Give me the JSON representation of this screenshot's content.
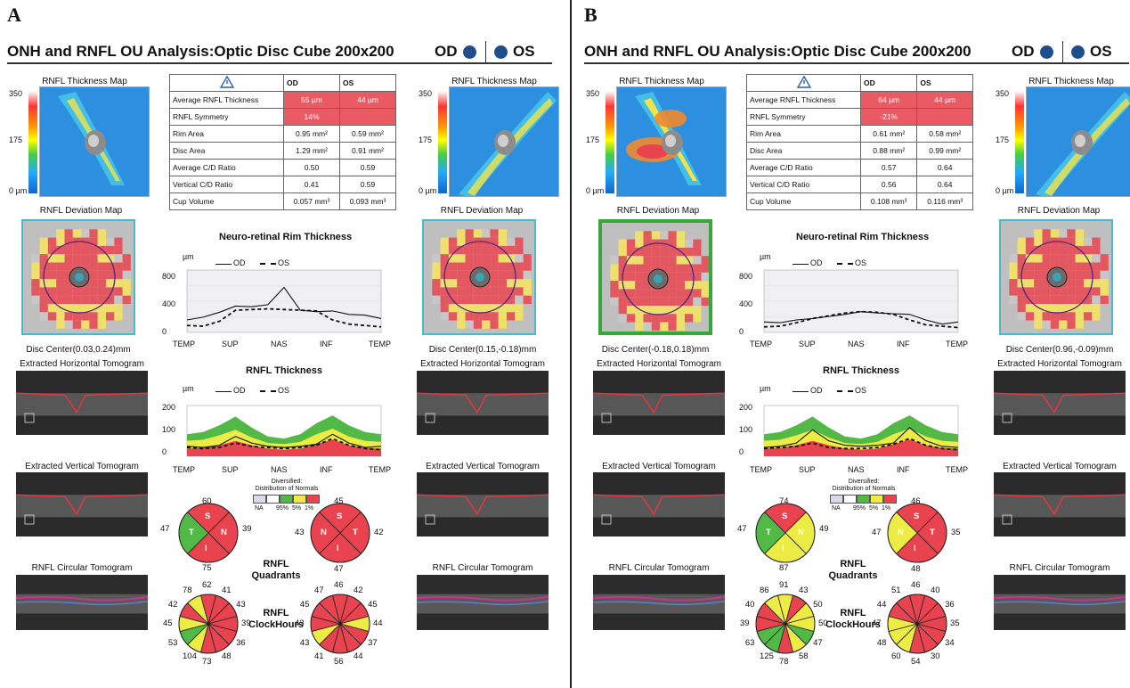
{
  "panels": [
    {
      "letter": "A",
      "title": "ONH and RNFL OU Analysis:Optic Disc Cube 200x200",
      "od_label": "OD",
      "os_label": "OS",
      "thickness_map_label": "RNFL Thickness Map",
      "scale_max": "350",
      "scale_mid": "175",
      "scale_min": "0 µm",
      "deviation_map_label": "RNFL Deviation Map",
      "disc_center_od": "Disc Center(0.03,0.24)mm",
      "disc_center_os": "Disc Center(0.15,-0.18)mm",
      "horiz_tomo_label": "Extracted Horizontal Tomogram",
      "vert_tomo_label": "Extracted Vertical Tomogram",
      "circ_tomo_label": "RNFL Circular Tomogram",
      "table": {
        "warn_icon": "warning-triangle-icon",
        "col_od": "OD",
        "col_os": "OS",
        "rows": [
          {
            "label": "Average RNFL Thickness",
            "od": "55 µm",
            "os": "44 µm",
            "od_red": true,
            "os_red": true
          },
          {
            "label": "RNFL Symmetry",
            "od": "14%",
            "os": "",
            "od_red": true,
            "os_red": true
          },
          {
            "label": "Rim Area",
            "od": "0.95 mm²",
            "os": "0.59 mm²",
            "od_red": false,
            "os_red": false
          },
          {
            "label": "Disc Area",
            "od": "1.29 mm²",
            "os": "0.91 mm²",
            "od_red": false,
            "os_red": false
          },
          {
            "label": "Average C/D Ratio",
            "od": "0.50",
            "os": "0.59",
            "od_red": false,
            "os_red": false
          },
          {
            "label": "Vertical C/D Ratio",
            "od": "0.41",
            "os": "0.59",
            "od_red": false,
            "os_red": false
          },
          {
            "label": "Cup Volume",
            "od": "0.057 mm³",
            "os": "0.093 mm³",
            "od_red": false,
            "os_red": false
          }
        ]
      },
      "rim_chart": {
        "title": "Neuro-retinal Rim Thickness",
        "unit": "µm",
        "legend_od": "OD",
        "legend_os": "OS",
        "yticks": [
          "800",
          "400",
          "0"
        ],
        "xticks": [
          "TEMP",
          "SUP",
          "NAS",
          "INF",
          "TEMP"
        ],
        "od": [
          180,
          220,
          290,
          380,
          370,
          400,
          650,
          320,
          300,
          310,
          260,
          250,
          200
        ],
        "os": [
          100,
          90,
          160,
          320,
          330,
          340,
          330,
          320,
          310,
          180,
          120,
          100,
          80
        ]
      },
      "rnfl_chart": {
        "title": "RNFL Thickness",
        "unit": "µm",
        "legend_od": "OD",
        "legend_os": "OS",
        "yticks": [
          "200",
          "100",
          "0"
        ],
        "xticks": [
          "TEMP",
          "SUP",
          "NAS",
          "INF",
          "TEMP"
        ],
        "od": [
          45,
          40,
          50,
          90,
          60,
          45,
          40,
          45,
          55,
          100,
          60,
          40,
          45
        ],
        "os": [
          40,
          35,
          40,
          60,
          45,
          40,
          35,
          40,
          50,
          80,
          50,
          35,
          30
        ]
      },
      "legend": {
        "title": "Distribution of Normals",
        "subtitle": "Diversified:",
        "labels": [
          "NA",
          "95%",
          "5%",
          "1%"
        ]
      },
      "quadrants_label": "RNFL Quadrants",
      "clock_label": "RNFL ClockHours",
      "od_quadrants": {
        "S": 60,
        "N": 39,
        "I": 75,
        "T": 47,
        "colors": [
          "#e8434f",
          "#e8434f",
          "#e8434f",
          "#52b947"
        ]
      },
      "os_quadrants": {
        "S": 45,
        "T": 42,
        "I": 47,
        "N": 43,
        "colors": [
          "#e8434f",
          "#e8434f",
          "#e8434f",
          "#e8434f"
        ]
      },
      "od_clock": {
        "values": [
          62,
          41,
          43,
          39,
          36,
          48,
          73,
          104,
          53,
          45,
          42,
          78
        ],
        "colors": [
          "#e8434f",
          "#e8434f",
          "#e8434f",
          "#e8434f",
          "#e8434f",
          "#e8434f",
          "#e8434f",
          "#ecec45",
          "#52b947",
          "#ecec45",
          "#e8434f",
          "#ecec45"
        ]
      },
      "os_clock": {
        "values": [
          46,
          42,
          45,
          44,
          37,
          44,
          56,
          41,
          43,
          43,
          45,
          47
        ],
        "colors": [
          "#e8434f",
          "#e8434f",
          "#e8434f",
          "#ecec45",
          "#e8434f",
          "#e8434f",
          "#e8434f",
          "#e8434f",
          "#ecec45",
          "#e8434f",
          "#e8434f",
          "#e8434f"
        ]
      }
    },
    {
      "letter": "B",
      "title": "ONH and RNFL OU Analysis:Optic Disc Cube 200x200",
      "od_label": "OD",
      "os_label": "OS",
      "thickness_map_label": "RNFL Thickness Map",
      "scale_max": "350",
      "scale_mid": "175",
      "scale_min": "0 µm",
      "deviation_map_label": "RNFL Deviation Map",
      "disc_center_od": "Disc Center(-0.18,0.18)mm",
      "disc_center_os": "Disc Center(0.96,-0.09)mm",
      "horiz_tomo_label": "Extracted Horizontal Tomogram",
      "vert_tomo_label": "Extracted Vertical Tomogram",
      "circ_tomo_label": "RNFL Circular Tomogram",
      "table": {
        "warn_icon": "warning-triangle-icon",
        "col_od": "OD",
        "col_os": "OS",
        "rows": [
          {
            "label": "Average RNFL Thickness",
            "od": "64 µm",
            "os": "44 µm",
            "od_red": true,
            "os_red": true
          },
          {
            "label": "RNFL Symmetry",
            "od": "-21%",
            "os": "",
            "od_red": true,
            "os_red": true
          },
          {
            "label": "Rim Area",
            "od": "0.61 mm²",
            "os": "0.58 mm²",
            "od_red": false,
            "os_red": false
          },
          {
            "label": "Disc Area",
            "od": "0.88 mm²",
            "os": "0.99 mm²",
            "od_red": false,
            "os_red": false
          },
          {
            "label": "Average C/D Ratio",
            "od": "0.57",
            "os": "0.64",
            "od_red": false,
            "os_red": false
          },
          {
            "label": "Vertical C/D Ratio",
            "od": "0.56",
            "os": "0.64",
            "od_red": false,
            "os_red": false
          },
          {
            "label": "Cup Volume",
            "od": "0.108 mm³",
            "os": "0.116 mm³",
            "od_red": false,
            "os_red": false
          }
        ]
      },
      "rim_chart": {
        "title": "Neuro-retinal Rim Thickness",
        "unit": "µm",
        "legend_od": "OD",
        "legend_os": "OS",
        "yticks": [
          "800",
          "400",
          "0"
        ],
        "xticks": [
          "TEMP",
          "SUP",
          "NAS",
          "INF",
          "TEMP"
        ],
        "od": [
          150,
          140,
          180,
          200,
          230,
          260,
          300,
          280,
          270,
          260,
          180,
          120,
          150
        ],
        "os": [
          80,
          90,
          140,
          200,
          240,
          280,
          300,
          290,
          260,
          180,
          110,
          90,
          70
        ]
      },
      "rnfl_chart": {
        "title": "RNFL Thickness",
        "unit": "µm",
        "legend_od": "OD",
        "legend_os": "OS",
        "yticks": [
          "200",
          "100",
          "0"
        ],
        "xticks": [
          "TEMP",
          "SUP",
          "NAS",
          "INF",
          "TEMP"
        ],
        "od": [
          40,
          45,
          60,
          120,
          70,
          50,
          45,
          50,
          60,
          130,
          70,
          45,
          40
        ],
        "os": [
          35,
          40,
          45,
          60,
          40,
          35,
          35,
          40,
          55,
          80,
          50,
          35,
          30
        ]
      },
      "legend": {
        "title": "Distribution of Normals",
        "subtitle": "Diversified:",
        "labels": [
          "NA",
          "95%",
          "5%",
          "1%"
        ]
      },
      "quadrants_label": "RNFL Quadrants",
      "clock_label": "RNFL ClockHours",
      "od_quadrants": {
        "S": 74,
        "N": 49,
        "I": 87,
        "T": 47,
        "colors": [
          "#e8434f",
          "#ecec45",
          "#ecec45",
          "#52b947"
        ]
      },
      "os_quadrants": {
        "S": 46,
        "T": 35,
        "I": 48,
        "N": 47,
        "colors": [
          "#e8434f",
          "#e8434f",
          "#e8434f",
          "#ecec45"
        ]
      },
      "od_clock": {
        "values": [
          91,
          43,
          50,
          50,
          47,
          58,
          78,
          125,
          63,
          39,
          40,
          86
        ],
        "colors": [
          "#ecec45",
          "#e8434f",
          "#ecec45",
          "#ecec45",
          "#52b947",
          "#ecec45",
          "#e8434f",
          "#52b947",
          "#52b947",
          "#e8434f",
          "#e8434f",
          "#ecec45"
        ]
      },
      "os_clock": {
        "values": [
          46,
          40,
          36,
          35,
          34,
          30,
          54,
          60,
          48,
          47,
          44,
          51
        ],
        "colors": [
          "#e8434f",
          "#e8434f",
          "#e8434f",
          "#e8434f",
          "#e8434f",
          "#e8434f",
          "#e8434f",
          "#ecec45",
          "#ecec45",
          "#ecec45",
          "#e8434f",
          "#e8434f"
        ]
      }
    }
  ]
}
